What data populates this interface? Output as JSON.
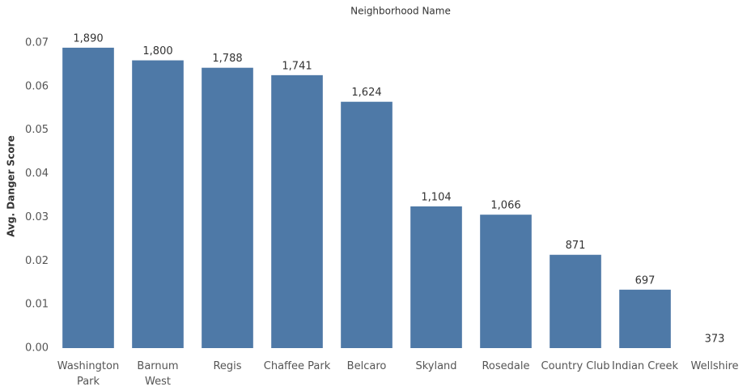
{
  "chart_data": {
    "type": "bar",
    "title": "Neighborhood Name",
    "y_label": "Avg. Danger Score",
    "categories": [
      "Washington\nPark",
      "Barnum\nWest",
      "Regis",
      "Chaffee Park",
      "Belcaro",
      "Skyland",
      "Rosedale",
      "Country Club",
      "Indian Creek",
      "Wellshire"
    ],
    "values": [
      0.0689,
      0.066,
      0.0643,
      0.0626,
      0.0565,
      0.0325,
      0.0306,
      0.0214,
      0.0134,
      0
    ],
    "data_labels": [
      {
        "value": 1890,
        "label": "1,890"
      },
      {
        "value": 1800,
        "label": "1,800"
      },
      {
        "value": 1788,
        "label": "1,788"
      },
      {
        "value": 1741,
        "label": "1,741"
      },
      {
        "value": 1624,
        "label": "1,624"
      },
      {
        "value": 1104,
        "label": "1,104"
      },
      {
        "value": 1066,
        "label": "1,066"
      },
      871,
      697,
      373
    ],
    "color": "#4e79a7",
    "ylim": [
      0,
      0.07
    ],
    "yticks": [
      {
        "value": 0,
        "label": "0.00"
      },
      0.01,
      0.02,
      0.03,
      0.04,
      0.05,
      0.06,
      0.07
    ],
    "grid": false
  }
}
